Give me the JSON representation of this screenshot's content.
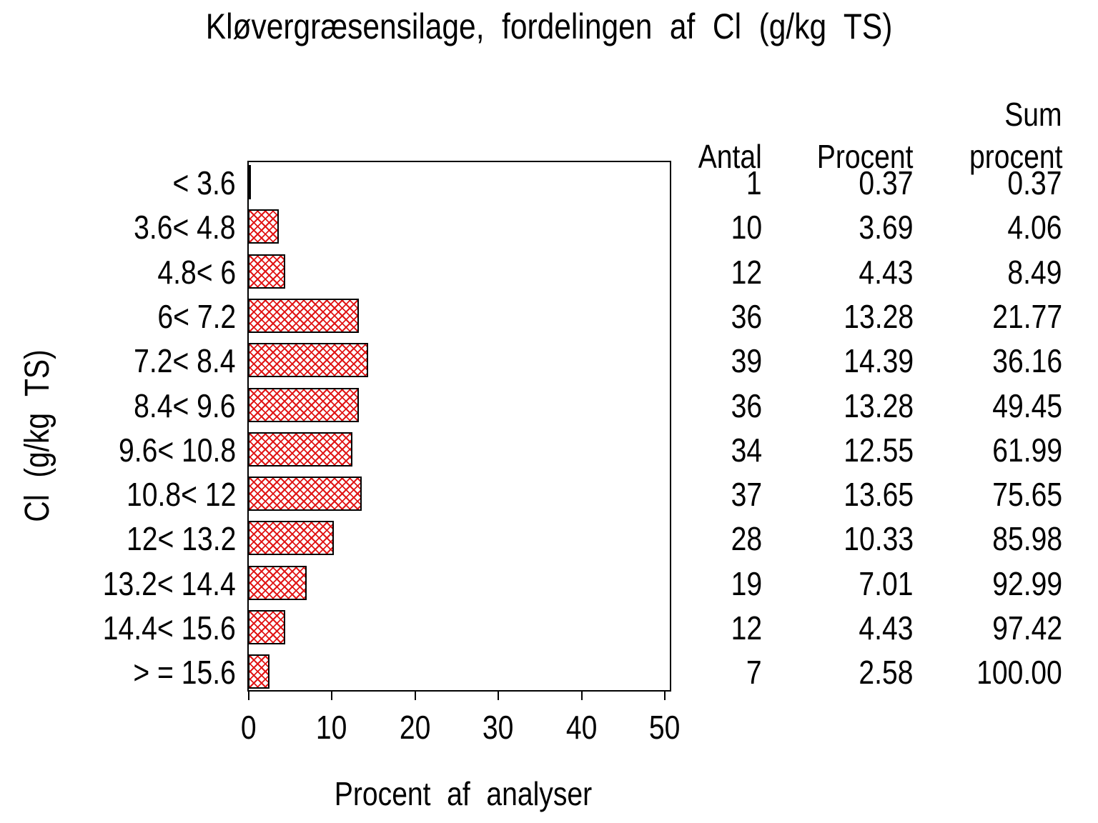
{
  "title": "Kløvergræsensilage, fordelingen af Cl (g/kg TS)",
  "axes": {
    "x_label": "Procent af analyser",
    "y_label": "Cl (g/kg TS)",
    "x_ticks": [
      "0",
      "10",
      "20",
      "30",
      "40",
      "50"
    ]
  },
  "table": {
    "headers": {
      "col_antal": "Antal",
      "col_procent": "Procent",
      "col_sum_line1": "Sum",
      "col_sum_line2": "procent"
    },
    "rows": [
      {
        "category": "< 3.6",
        "antal": "1",
        "procent": "0.37",
        "sum_procent": "0.37"
      },
      {
        "category": "3.6< 4.8",
        "antal": "10",
        "procent": "3.69",
        "sum_procent": "4.06"
      },
      {
        "category": "4.8< 6",
        "antal": "12",
        "procent": "4.43",
        "sum_procent": "8.49"
      },
      {
        "category": "6< 7.2",
        "antal": "36",
        "procent": "13.28",
        "sum_procent": "21.77"
      },
      {
        "category": "7.2< 8.4",
        "antal": "39",
        "procent": "14.39",
        "sum_procent": "36.16"
      },
      {
        "category": "8.4< 9.6",
        "antal": "36",
        "procent": "13.28",
        "sum_procent": "49.45"
      },
      {
        "category": "9.6< 10.8",
        "antal": "34",
        "procent": "12.55",
        "sum_procent": "61.99"
      },
      {
        "category": "10.8< 12",
        "antal": "37",
        "procent": "13.65",
        "sum_procent": "75.65"
      },
      {
        "category": "12< 13.2",
        "antal": "28",
        "procent": "10.33",
        "sum_procent": "85.98"
      },
      {
        "category": "13.2< 14.4",
        "antal": "19",
        "procent": "7.01",
        "sum_procent": "92.99"
      },
      {
        "category": "14.4< 15.6",
        "antal": "12",
        "procent": "4.43",
        "sum_procent": "97.42"
      },
      {
        "category": "> = 15.6",
        "antal": "7",
        "procent": "2.58",
        "sum_procent": "100.00"
      }
    ]
  },
  "chart_data": {
    "type": "bar",
    "orientation": "horizontal",
    "title": "Kløvergræsensilage, fordelingen af Cl (g/kg TS)",
    "xlabel": "Procent af analyser",
    "ylabel": "Cl (g/kg TS)",
    "xlim": [
      0,
      50
    ],
    "xticks": [
      0,
      10,
      20,
      30,
      40,
      50
    ],
    "grid": false,
    "legend": "none",
    "categories": [
      "< 3.6",
      "3.6< 4.8",
      "4.8< 6",
      "6< 7.2",
      "7.2< 8.4",
      "8.4< 9.6",
      "9.6< 10.8",
      "10.8< 12",
      "12< 13.2",
      "13.2< 14.4",
      "14.4< 15.6",
      "> = 15.6"
    ],
    "series": [
      {
        "name": "Procent",
        "values": [
          0.37,
          3.69,
          4.43,
          13.28,
          14.39,
          13.28,
          12.55,
          13.65,
          10.33,
          7.01,
          4.43,
          2.58
        ]
      },
      {
        "name": "Antal",
        "values": [
          1,
          10,
          12,
          36,
          39,
          36,
          34,
          37,
          28,
          19,
          12,
          7
        ]
      },
      {
        "name": "Sum procent",
        "values": [
          0.37,
          4.06,
          8.49,
          21.77,
          36.16,
          49.45,
          61.99,
          75.65,
          85.98,
          92.99,
          97.42,
          100.0
        ]
      }
    ],
    "bar_style": {
      "fill_pattern": "diagonal-crosshatch",
      "pattern_color": "#e01515",
      "border_color": "#000000",
      "background": "#ffffff"
    }
  },
  "colors": {
    "hatch_red": "#e01515",
    "line_black": "#000000",
    "background": "#ffffff"
  }
}
